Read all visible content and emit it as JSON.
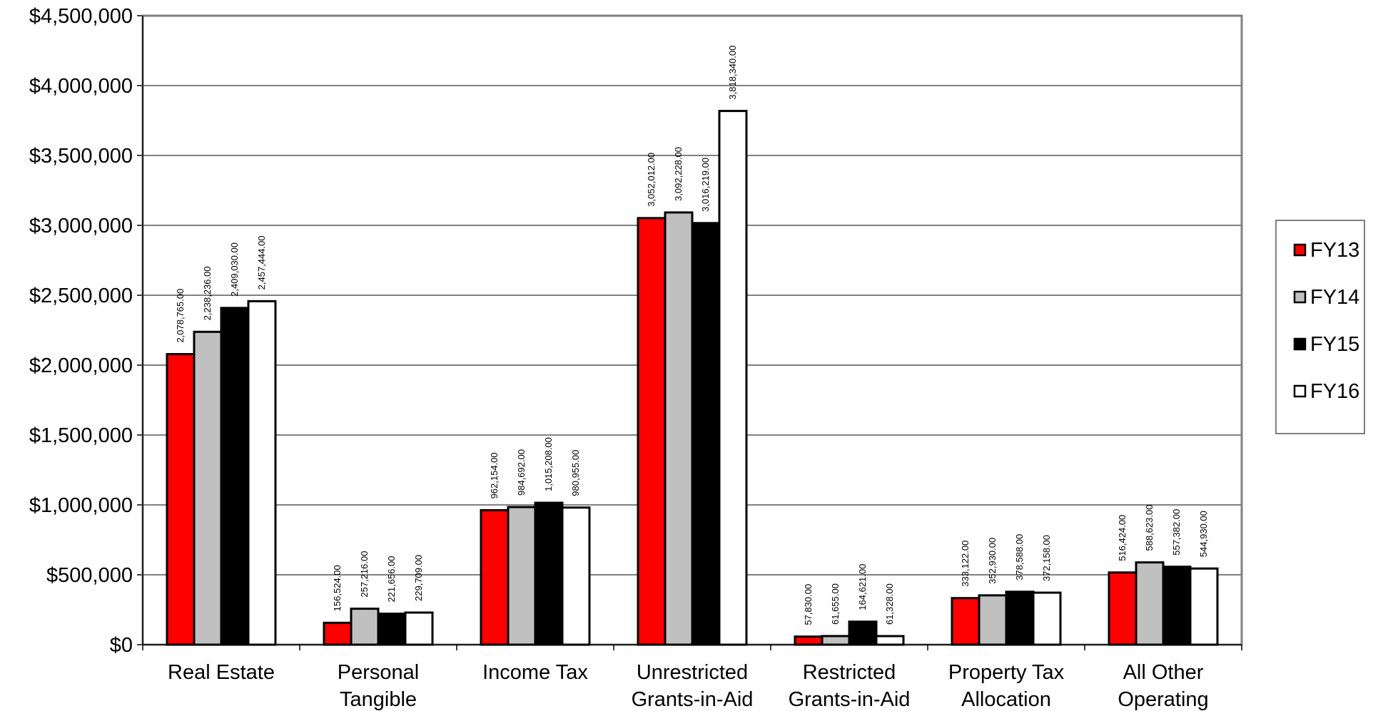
{
  "chart_data": {
    "type": "bar",
    "categories": [
      [
        "Real Estate"
      ],
      [
        "Personal",
        "Tangible"
      ],
      [
        "Income Tax"
      ],
      [
        "Unrestricted",
        "Grants-in-Aid"
      ],
      [
        "Restricted",
        "Grants-in-Aid"
      ],
      [
        "Property Tax",
        "Allocation"
      ],
      [
        "All Other",
        "Operating"
      ]
    ],
    "series": [
      {
        "name": "FY13",
        "color": "#ff0000",
        "values": [
          2078765,
          156524,
          962154,
          3052012,
          57830,
          333122,
          516424
        ],
        "labels": [
          "2,078,765.00",
          "156,524.00",
          "962,154.00",
          "3,052,012.00",
          "57,830.00",
          "333,122.00",
          "516,424.00"
        ]
      },
      {
        "name": "FY14",
        "color": "#c0c0c0",
        "values": [
          2238236,
          257216,
          984692,
          3092228,
          61655,
          352930,
          588623
        ],
        "labels": [
          "2,238,236.00",
          "257,216.00",
          "984,692.00",
          "3,092,228.00",
          "61,655.00",
          "352,930.00",
          "588,623.00"
        ]
      },
      {
        "name": "FY15",
        "color": "#000000",
        "values": [
          2409030,
          221656,
          1015208,
          3016219,
          164621,
          378588,
          557382
        ],
        "labels": [
          "2,409,030.00",
          "221,656.00",
          "1,015,208.00",
          "3,016,219.00",
          "164,621.00",
          "378,588.00",
          "557,382.00"
        ]
      },
      {
        "name": "FY16",
        "color": "#ffffff",
        "values": [
          2457444,
          229709,
          980955,
          3818340,
          61328,
          372158,
          544930
        ],
        "labels": [
          "2,457,444.00",
          "229,709.00",
          "980,955.00",
          "3,818,340.00",
          "61,328.00",
          "372,158.00",
          "544,930.00"
        ]
      }
    ],
    "y_ticks": [
      "$0",
      "$500,000",
      "$1,000,000",
      "$1,500,000",
      "$2,000,000",
      "$2,500,000",
      "$3,000,000",
      "$3,500,000",
      "$4,000,000",
      "$4,500,000"
    ],
    "ylim": [
      0,
      4500000
    ],
    "grid": true,
    "legend_position": "right"
  }
}
